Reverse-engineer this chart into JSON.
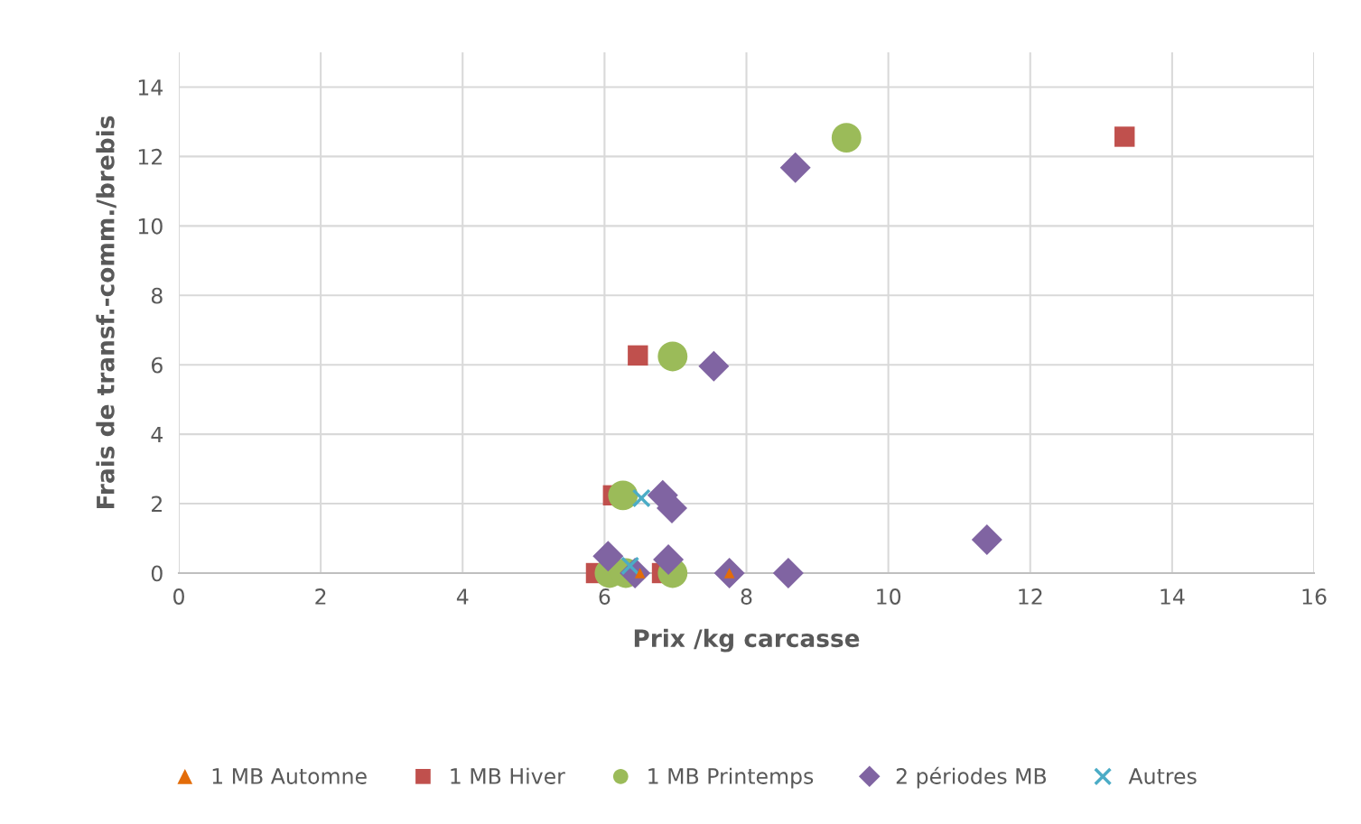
{
  "chart_data": {
    "type": "scatter",
    "xlabel": "Prix /kg carcasse",
    "ylabel": "Frais de transf.-comm./brebis",
    "xlim": [
      0,
      16
    ],
    "xticks": [
      0,
      2,
      4,
      6,
      8,
      10,
      12,
      14,
      16
    ],
    "ylim": [
      0,
      15
    ],
    "yticks": [
      0,
      2,
      4,
      6,
      8,
      10,
      12,
      14
    ],
    "grid": true,
    "legend": "bottom",
    "series": [
      {
        "name": "1 MB Automne",
        "color": "#e36c09",
        "marker": "triangle",
        "x": [
          6.5,
          7.76
        ],
        "values": [
          0,
          0
        ]
      },
      {
        "name": "1 MB Hiver",
        "color": "#c0504d",
        "marker": "square",
        "x": [
          13.33,
          6.47,
          6.12,
          5.88,
          6.81
        ],
        "values": [
          12.57,
          6.27,
          2.24,
          0,
          0
        ]
      },
      {
        "name": "1 MB Printemps",
        "color": "#9bbb59",
        "marker": "circle",
        "x": [
          9.41,
          6.96,
          6.26,
          6.07,
          6.3,
          6.96
        ],
        "values": [
          12.54,
          6.24,
          2.24,
          0,
          0,
          0
        ]
      },
      {
        "name": "2 périodes MB",
        "color": "#8064a2",
        "marker": "diamond",
        "x": [
          8.69,
          7.54,
          6.82,
          6.95,
          6.05,
          6.43,
          6.9,
          7.76,
          8.59,
          11.39
        ],
        "values": [
          11.68,
          5.96,
          2.24,
          1.87,
          0.49,
          0,
          0.39,
          0,
          0,
          0.96
        ]
      },
      {
        "name": "Autres",
        "color": "#4bacc6",
        "marker": "cross",
        "x": [
          6.52,
          6.36
        ],
        "values": [
          2.16,
          0.21
        ]
      }
    ]
  }
}
